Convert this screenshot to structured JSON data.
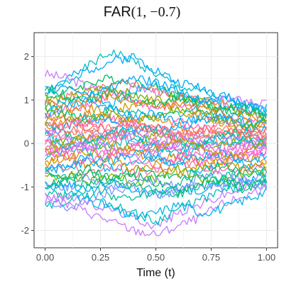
{
  "chart_data": {
    "type": "line",
    "title": "FAR(1, −0.7)",
    "title_prefix": "FAR",
    "title_args": "(1, −0.7)",
    "xlabel": "Time (t)",
    "ylabel": "",
    "xlim": [
      -0.05,
      1.05
    ],
    "ylim": [
      -2.4,
      2.55
    ],
    "x_ticks": [
      0.0,
      0.25,
      0.5,
      0.75,
      1.0
    ],
    "x_tick_labels": [
      "0.00",
      "0.25",
      "0.50",
      "0.75",
      "1.00"
    ],
    "y_ticks": [
      -2,
      -1,
      0,
      1,
      2
    ],
    "y_tick_labels": [
      "-2",
      "-1",
      "0",
      "1",
      "2"
    ],
    "grid": true,
    "legend": "none",
    "n_curves": 50,
    "x": [
      0.0,
      0.1,
      0.2,
      0.3,
      0.4,
      0.5,
      0.6,
      0.7,
      0.8,
      0.9,
      1.0
    ],
    "series": [
      {
        "color": "#00bfc4",
        "values": [
          1.1,
          1.4,
          1.8,
          2.1,
          1.9,
          1.6,
          1.3,
          1.2,
          1.0,
          0.8,
          0.7
        ]
      },
      {
        "color": "#00a9ff",
        "values": [
          1.2,
          1.5,
          1.7,
          1.9,
          2.0,
          1.7,
          1.4,
          1.3,
          1.1,
          0.9,
          0.8
        ]
      },
      {
        "color": "#c77cff",
        "values": [
          1.6,
          1.5,
          1.3,
          1.2,
          1.3,
          1.2,
          1.0,
          0.9,
          1.0,
          1.0,
          0.9
        ]
      },
      {
        "color": "#00be67",
        "values": [
          1.0,
          1.2,
          1.4,
          1.5,
          1.4,
          1.3,
          1.1,
          0.9,
          0.8,
          0.7,
          0.6
        ]
      },
      {
        "color": "#f8766d",
        "values": [
          0.9,
          1.1,
          1.2,
          1.3,
          1.4,
          1.2,
          1.1,
          1.0,
          0.9,
          0.8,
          0.6
        ]
      },
      {
        "color": "#7cae00",
        "values": [
          1.1,
          1.0,
          1.2,
          1.3,
          1.1,
          1.0,
          1.1,
          1.0,
          0.8,
          0.7,
          0.7
        ]
      },
      {
        "color": "#00b8e7",
        "values": [
          0.8,
          1.0,
          1.1,
          0.9,
          1.2,
          1.4,
          1.2,
          1.0,
          0.9,
          0.8,
          0.7
        ]
      },
      {
        "color": "#ff61cc",
        "values": [
          0.6,
          0.8,
          0.9,
          1.1,
          1.0,
          0.8,
          0.9,
          0.7,
          0.6,
          0.5,
          0.4
        ]
      },
      {
        "color": "#cd9600",
        "values": [
          0.5,
          0.7,
          0.8,
          0.7,
          0.9,
          1.0,
          0.8,
          0.6,
          0.5,
          0.4,
          0.3
        ]
      },
      {
        "color": "#00c19a",
        "values": [
          0.9,
          0.7,
          0.6,
          0.8,
          0.7,
          0.6,
          0.7,
          0.8,
          0.6,
          0.5,
          0.5
        ]
      },
      {
        "color": "#e68613",
        "values": [
          0.4,
          0.5,
          0.7,
          0.6,
          0.5,
          0.6,
          0.4,
          0.3,
          0.2,
          0.3,
          0.2
        ]
      },
      {
        "color": "#ff61cc",
        "values": [
          0.3,
          0.5,
          0.4,
          0.6,
          0.4,
          0.3,
          0.5,
          0.4,
          0.2,
          0.1,
          0.1
        ]
      },
      {
        "color": "#00a9ff",
        "values": [
          0.2,
          0.4,
          0.6,
          0.5,
          0.3,
          0.4,
          0.3,
          0.5,
          0.6,
          0.4,
          0.3
        ]
      },
      {
        "color": "#f8766d",
        "values": [
          0.0,
          0.2,
          0.3,
          0.1,
          0.2,
          0.0,
          0.1,
          0.2,
          0.0,
          -0.1,
          0.0
        ]
      },
      {
        "color": "#8494ff",
        "values": [
          0.1,
          0.0,
          0.2,
          0.3,
          0.1,
          -0.1,
          0.0,
          0.2,
          0.1,
          0.0,
          -0.1
        ]
      },
      {
        "color": "#7cae00",
        "values": [
          -0.1,
          0.1,
          0.0,
          -0.2,
          0.0,
          0.2,
          0.1,
          -0.1,
          0.0,
          0.1,
          0.0
        ]
      },
      {
        "color": "#ff61cc",
        "values": [
          -0.2,
          -0.1,
          0.1,
          0.2,
          0.0,
          -0.2,
          -0.1,
          0.0,
          -0.2,
          -0.1,
          -0.2
        ]
      },
      {
        "color": "#00bfc4",
        "values": [
          0.2,
          -0.1,
          -0.2,
          0.0,
          0.1,
          -0.1,
          -0.3,
          -0.1,
          0.0,
          0.1,
          0.2
        ]
      },
      {
        "color": "#c77cff",
        "values": [
          -0.3,
          -0.2,
          0.0,
          -0.1,
          -0.3,
          -0.2,
          0.0,
          -0.2,
          -0.3,
          -0.2,
          -0.1
        ]
      },
      {
        "color": "#e68613",
        "values": [
          -0.4,
          -0.3,
          -0.5,
          -0.3,
          -0.2,
          -0.4,
          -0.3,
          -0.4,
          -0.5,
          -0.3,
          -0.4
        ]
      },
      {
        "color": "#00b0f6",
        "values": [
          -0.5,
          -0.6,
          -0.4,
          -0.6,
          -0.5,
          -0.3,
          -0.5,
          -0.6,
          -0.4,
          -0.5,
          -0.6
        ]
      },
      {
        "color": "#ff6a98",
        "values": [
          -0.6,
          -0.5,
          -0.7,
          -0.5,
          -0.7,
          -0.6,
          -0.4,
          -0.5,
          -0.7,
          -0.6,
          -0.5
        ]
      },
      {
        "color": "#00be67",
        "values": [
          -0.7,
          -0.8,
          -0.6,
          -0.8,
          -0.6,
          -0.7,
          -0.8,
          -0.6,
          -0.5,
          -0.7,
          -0.8
        ]
      },
      {
        "color": "#7cae00",
        "values": [
          -0.8,
          -0.7,
          -0.9,
          -0.7,
          -0.9,
          -0.8,
          -0.6,
          -0.8,
          -0.9,
          -0.7,
          -0.6
        ]
      },
      {
        "color": "#8494ff",
        "values": [
          -0.9,
          -1.0,
          -0.8,
          -1.0,
          -0.8,
          -0.9,
          -1.0,
          -0.8,
          -0.7,
          -0.9,
          -1.0
        ]
      },
      {
        "color": "#00a9ff",
        "values": [
          -1.0,
          -0.9,
          -1.1,
          -0.9,
          -1.1,
          -1.2,
          -1.0,
          -1.1,
          -0.9,
          -0.8,
          -0.9
        ]
      },
      {
        "color": "#00c19a",
        "values": [
          -1.1,
          -1.2,
          -1.0,
          -1.2,
          -1.3,
          -1.1,
          -1.2,
          -1.0,
          -0.9,
          -1.1,
          -0.8
        ]
      },
      {
        "color": "#c77cff",
        "values": [
          -1.3,
          -1.2,
          -1.4,
          -1.5,
          -1.7,
          -1.9,
          -1.6,
          -1.4,
          -1.2,
          -1.0,
          -0.9
        ]
      },
      {
        "color": "#00bfc4",
        "values": [
          -1.5,
          -1.3,
          -1.2,
          -1.4,
          -1.6,
          -1.8,
          -1.5,
          -1.3,
          -1.1,
          -1.0,
          -0.8
        ]
      },
      {
        "color": "#c77cff",
        "values": [
          -1.2,
          -1.4,
          -1.6,
          -1.8,
          -2.0,
          -2.1,
          -1.9,
          -1.7,
          -1.4,
          -1.2,
          -1.0
        ]
      },
      {
        "color": "#00b8e7",
        "values": [
          -0.9,
          -1.1,
          -1.3,
          -1.5,
          -1.7,
          -1.6,
          -1.4,
          -1.6,
          -1.5,
          -1.3,
          -1.1
        ]
      },
      {
        "color": "#f8766d",
        "values": [
          0.7,
          0.5,
          0.3,
          0.4,
          0.6,
          0.4,
          0.2,
          0.3,
          0.4,
          0.2,
          0.3
        ]
      },
      {
        "color": "#ff61cc",
        "values": [
          -0.1,
          -0.3,
          -0.4,
          -0.2,
          -0.4,
          -0.5,
          -0.3,
          -0.2,
          -0.4,
          -0.3,
          -0.2
        ]
      },
      {
        "color": "#00be67",
        "values": [
          1.3,
          1.1,
          1.0,
          1.2,
          1.0,
          0.9,
          1.1,
          0.9,
          0.8,
          0.9,
          0.6
        ]
      },
      {
        "color": "#00a9ff",
        "values": [
          0.6,
          0.9,
          1.0,
          0.8,
          0.6,
          0.7,
          0.5,
          0.6,
          0.7,
          0.5,
          0.4
        ]
      },
      {
        "color": "#cd9600",
        "values": [
          -0.5,
          -0.3,
          -0.2,
          -0.4,
          -0.6,
          -0.5,
          -0.7,
          -0.5,
          -0.4,
          -0.6,
          -0.5
        ]
      },
      {
        "color": "#00c19a",
        "values": [
          0.4,
          0.2,
          0.0,
          0.2,
          0.4,
          0.3,
          0.1,
          0.0,
          0.2,
          0.3,
          0.1
        ]
      },
      {
        "color": "#8494ff",
        "values": [
          -1.4,
          -1.5,
          -1.3,
          -1.1,
          -1.0,
          -1.2,
          -1.1,
          -0.9,
          -1.0,
          -0.8,
          -0.7
        ]
      },
      {
        "color": "#e68613",
        "values": [
          1.0,
          0.8,
          1.0,
          1.1,
          0.9,
          0.8,
          0.9,
          0.8,
          0.7,
          0.6,
          0.5
        ]
      },
      {
        "color": "#00bfc4",
        "values": [
          -0.3,
          -0.1,
          0.1,
          0.3,
          0.2,
          0.0,
          -0.2,
          0.0,
          0.2,
          0.1,
          -0.1
        ]
      },
      {
        "color": "#7cae00",
        "values": [
          0.8,
          0.6,
          0.5,
          0.7,
          0.5,
          0.6,
          0.8,
          0.7,
          0.5,
          0.4,
          0.5
        ]
      },
      {
        "color": "#ff61cc",
        "values": [
          0.0,
          -0.2,
          -0.1,
          -0.3,
          -0.1,
          0.0,
          -0.2,
          -0.4,
          -0.2,
          -0.3,
          -0.1
        ]
      },
      {
        "color": "#00b0f6",
        "values": [
          -0.7,
          -0.5,
          -0.3,
          -0.4,
          -0.2,
          -0.3,
          -0.5,
          -0.3,
          -0.2,
          -0.4,
          -0.3
        ]
      },
      {
        "color": "#c77cff",
        "values": [
          0.3,
          0.1,
          -0.1,
          0.1,
          0.3,
          0.1,
          0.2,
          0.0,
          -0.1,
          0.0,
          0.1
        ]
      },
      {
        "color": "#00be67",
        "values": [
          -1.0,
          -0.8,
          -0.7,
          -0.9,
          -0.7,
          -0.9,
          -1.1,
          -0.9,
          -0.8,
          -1.0,
          -0.9
        ]
      },
      {
        "color": "#f8766d",
        "values": [
          0.5,
          0.3,
          0.4,
          0.2,
          0.4,
          0.2,
          0.3,
          0.1,
          0.3,
          0.2,
          0.1
        ]
      },
      {
        "color": "#00a9ff",
        "values": [
          1.2,
          1.3,
          1.1,
          1.3,
          1.5,
          1.4,
          1.2,
          1.0,
          1.1,
          0.9,
          0.8
        ]
      },
      {
        "color": "#cd9600",
        "values": [
          -0.2,
          0.0,
          0.2,
          0.0,
          -0.2,
          -0.1,
          0.1,
          -0.1,
          -0.3,
          -0.2,
          0.0
        ]
      },
      {
        "color": "#00c19a",
        "values": [
          -0.6,
          -0.8,
          -1.0,
          -0.8,
          -1.0,
          -1.1,
          -0.9,
          -0.7,
          -0.8,
          -0.6,
          -0.7
        ]
      },
      {
        "color": "#ff6a98",
        "values": [
          0.2,
          0.4,
          0.5,
          0.3,
          0.5,
          0.3,
          0.1,
          0.3,
          0.5,
          0.3,
          0.2
        ]
      }
    ]
  }
}
